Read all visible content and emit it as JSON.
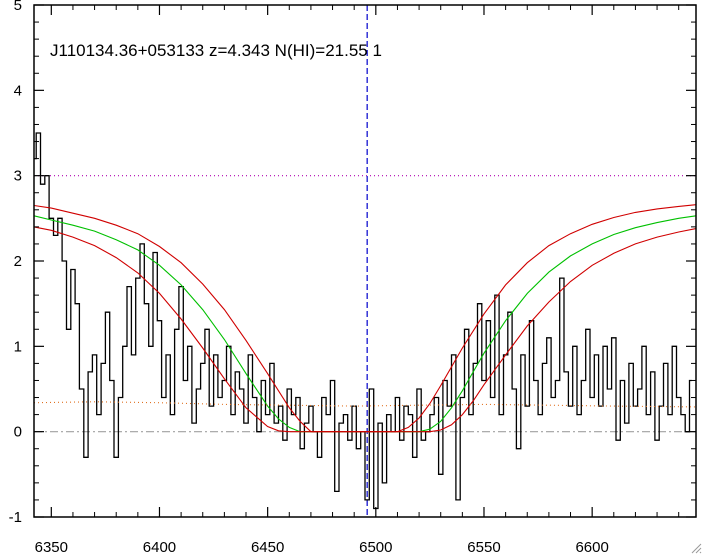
{
  "chart_data": {
    "type": "line",
    "title": "J110134.36+053133 z=4.343 N(HI)=21.55 1",
    "xlabel": "",
    "ylabel": "",
    "xlim": [
      6342,
      6648
    ],
    "ylim": [
      -1,
      5
    ],
    "x_ticks": [
      6350,
      6400,
      6450,
      6500,
      6550,
      6600
    ],
    "y_ticks": [
      -1,
      0,
      1,
      2,
      3,
      4,
      5
    ],
    "grid": false,
    "reference_lines": [
      {
        "orientation": "horizontal",
        "value": 3,
        "style": "dotted",
        "color": "#b000b0"
      },
      {
        "orientation": "horizontal",
        "value": 0,
        "style": "dash-dot",
        "color": "#a0a0a0"
      },
      {
        "orientation": "vertical",
        "value": 6496,
        "style": "dashed",
        "color": "#0000cc"
      }
    ],
    "series": [
      {
        "style": "steps",
        "color": "#000000",
        "x": [
          6342,
          6344,
          6346,
          6348,
          6350,
          6352,
          6354,
          6356,
          6358,
          6360,
          6362,
          6364,
          6366,
          6368,
          6370,
          6372,
          6374,
          6376,
          6378,
          6380,
          6382,
          6384,
          6386,
          6388,
          6390,
          6392,
          6394,
          6396,
          6398,
          6400,
          6402,
          6404,
          6406,
          6408,
          6410,
          6412,
          6414,
          6416,
          6418,
          6420,
          6422,
          6424,
          6426,
          6428,
          6430,
          6432,
          6434,
          6436,
          6438,
          6440,
          6442,
          6444,
          6446,
          6448,
          6450,
          6452,
          6454,
          6456,
          6458,
          6460,
          6462,
          6464,
          6466,
          6468,
          6470,
          6472,
          6474,
          6476,
          6478,
          6480,
          6482,
          6484,
          6486,
          6488,
          6490,
          6492,
          6494,
          6496,
          6498,
          6500,
          6502,
          6504,
          6506,
          6508,
          6510,
          6512,
          6514,
          6516,
          6518,
          6520,
          6522,
          6524,
          6526,
          6528,
          6530,
          6532,
          6534,
          6536,
          6538,
          6540,
          6542,
          6544,
          6546,
          6548,
          6550,
          6552,
          6554,
          6556,
          6558,
          6560,
          6562,
          6564,
          6566,
          6568,
          6570,
          6572,
          6574,
          6576,
          6578,
          6580,
          6582,
          6584,
          6586,
          6588,
          6590,
          6592,
          6594,
          6596,
          6598,
          6600,
          6602,
          6604,
          6606,
          6608,
          6610,
          6612,
          6614,
          6616,
          6618,
          6620,
          6622,
          6624,
          6626,
          6628,
          6630,
          6632,
          6634,
          6636,
          6638,
          6640,
          6642,
          6644,
          6646
        ],
        "y": [
          3.2,
          3.5,
          2.9,
          3.0,
          2.5,
          2.3,
          2.5,
          2.0,
          1.2,
          1.9,
          1.5,
          0.5,
          -0.3,
          0.7,
          0.9,
          0.2,
          0.8,
          1.4,
          0.6,
          -0.3,
          0.4,
          1.0,
          1.7,
          0.9,
          1.8,
          2.2,
          1.5,
          1.0,
          2.1,
          1.3,
          0.4,
          0.9,
          0.2,
          1.2,
          1.7,
          0.6,
          1.0,
          0.1,
          0.5,
          0.8,
          1.2,
          0.3,
          0.9,
          0.4,
          0.6,
          1.0,
          0.2,
          0.7,
          0.5,
          0.1,
          0.9,
          0.4,
          0.0,
          0.6,
          0.2,
          0.8,
          0.1,
          0.3,
          -0.1,
          0.5,
          0.2,
          0.4,
          -0.2,
          0.1,
          0.3,
          0.0,
          -0.3,
          0.4,
          0.2,
          0.6,
          -0.7,
          0.1,
          0.2,
          -0.1,
          0.3,
          -0.2,
          0.0,
          -0.8,
          0.5,
          -0.9,
          0.1,
          -0.6,
          0.2,
          0.0,
          0.4,
          -0.1,
          0.3,
          0.2,
          -0.3,
          0.5,
          -0.1,
          0.0,
          0.2,
          0.4,
          -0.5,
          0.6,
          0.3,
          0.9,
          -0.8,
          0.4,
          1.2,
          0.2,
          0.8,
          1.5,
          0.6,
          1.3,
          0.4,
          1.6,
          0.2,
          0.9,
          1.4,
          0.5,
          -0.2,
          0.9,
          0.3,
          1.3,
          0.6,
          0.2,
          0.8,
          1.1,
          0.4,
          0.6,
          1.8,
          0.7,
          0.3,
          1.0,
          0.2,
          0.6,
          1.2,
          0.4,
          0.9,
          0.3,
          1.0,
          0.5,
          1.1,
          -0.1,
          0.6,
          0.1,
          0.8,
          0.3,
          0.5,
          1.0,
          0.2,
          0.7,
          -0.1,
          0.3,
          0.8,
          0.2,
          1.0,
          0.4,
          0.2,
          0.0,
          0.6
        ]
      },
      {
        "style": "line",
        "color": "#00c000",
        "x": [
          6342,
          6350,
          6360,
          6370,
          6380,
          6390,
          6400,
          6410,
          6420,
          6430,
          6440,
          6450,
          6455,
          6460,
          6465,
          6470,
          6475,
          6480,
          6490,
          6500,
          6510,
          6520,
          6525,
          6530,
          6535,
          6540,
          6545,
          6550,
          6560,
          6570,
          6580,
          6590,
          6600,
          6610,
          6620,
          6630,
          6640,
          6648
        ],
        "y": [
          2.53,
          2.48,
          2.42,
          2.35,
          2.25,
          2.13,
          1.95,
          1.72,
          1.43,
          1.08,
          0.68,
          0.3,
          0.15,
          0.05,
          0.0,
          0.0,
          0.0,
          0.0,
          0.0,
          0.0,
          0.0,
          0.0,
          0.03,
          0.12,
          0.28,
          0.48,
          0.7,
          0.92,
          1.3,
          1.62,
          1.87,
          2.06,
          2.2,
          2.31,
          2.39,
          2.45,
          2.5,
          2.53
        ]
      },
      {
        "style": "line",
        "color": "#d00000",
        "x": [
          6342,
          6350,
          6360,
          6370,
          6380,
          6390,
          6400,
          6410,
          6420,
          6430,
          6440,
          6450,
          6460,
          6465,
          6470,
          6475,
          6480,
          6490,
          6500,
          6510,
          6515,
          6520,
          6525,
          6530,
          6540,
          6550,
          6560,
          6570,
          6580,
          6590,
          6600,
          6610,
          6620,
          6630,
          6640,
          6648
        ],
        "y": [
          2.65,
          2.62,
          2.56,
          2.5,
          2.42,
          2.32,
          2.17,
          1.98,
          1.73,
          1.43,
          1.07,
          0.68,
          0.28,
          0.12,
          0.0,
          0.0,
          0.0,
          0.0,
          0.0,
          0.0,
          0.05,
          0.16,
          0.33,
          0.54,
          0.98,
          1.38,
          1.72,
          1.98,
          2.18,
          2.32,
          2.43,
          2.51,
          2.57,
          2.61,
          2.64,
          2.66
        ]
      },
      {
        "style": "line",
        "color": "#d00000",
        "x": [
          6342,
          6350,
          6360,
          6370,
          6380,
          6390,
          6400,
          6410,
          6420,
          6430,
          6440,
          6450,
          6455,
          6460,
          6465,
          6470,
          6480,
          6490,
          6500,
          6510,
          6520,
          6525,
          6530,
          6535,
          6540,
          6545,
          6550,
          6560,
          6570,
          6580,
          6590,
          6600,
          6610,
          6620,
          6630,
          6640,
          6648
        ],
        "y": [
          2.4,
          2.36,
          2.28,
          2.18,
          2.04,
          1.86,
          1.62,
          1.32,
          0.98,
          0.62,
          0.28,
          0.06,
          0.01,
          0.0,
          0.0,
          0.0,
          0.0,
          0.0,
          0.0,
          0.0,
          0.0,
          0.0,
          0.02,
          0.08,
          0.2,
          0.36,
          0.55,
          0.9,
          1.24,
          1.52,
          1.76,
          1.95,
          2.09,
          2.2,
          2.28,
          2.34,
          2.38
        ]
      },
      {
        "style": "dotted",
        "color": "#e07020",
        "x": [
          6342,
          6370,
          6400,
          6430,
          6460,
          6490,
          6520,
          6550,
          6580,
          6610,
          6648
        ],
        "y": [
          0.34,
          0.35,
          0.34,
          0.32,
          0.31,
          0.3,
          0.31,
          0.32,
          0.31,
          0.3,
          0.29
        ]
      }
    ]
  }
}
